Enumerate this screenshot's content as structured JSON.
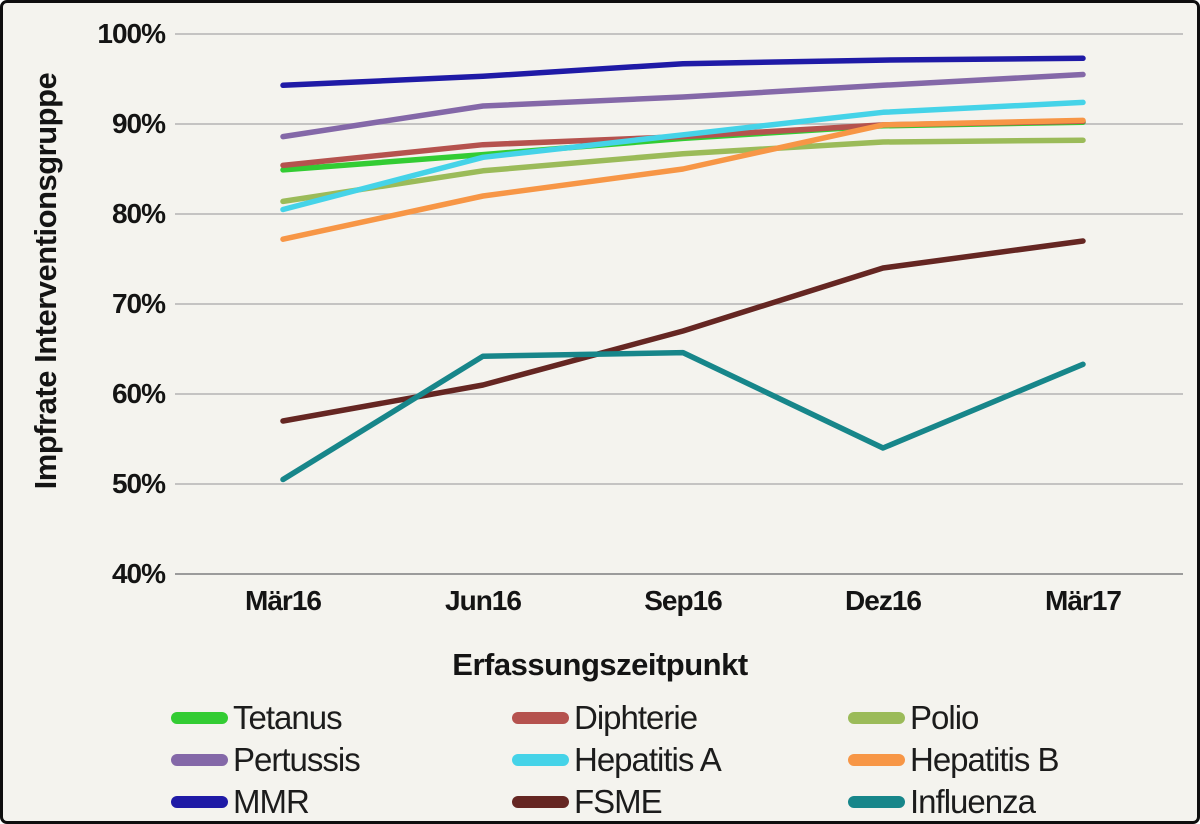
{
  "chart_data": {
    "type": "line",
    "title": "",
    "xlabel": "Erfassungszeitpunkt",
    "ylabel": "Impfrate Interventionsgruppe",
    "categories": [
      "Mär16",
      "Jun16",
      "Sep16",
      "Dez16",
      "Mär17"
    ],
    "ylim": [
      40,
      100
    ],
    "ytick_labels": [
      "100%",
      "90%",
      "80%",
      "70%",
      "60%",
      "50%",
      "40%"
    ],
    "ytick_values": [
      100,
      90,
      80,
      70,
      60,
      50,
      40
    ],
    "grid": true,
    "legend_position": "bottom",
    "series": [
      {
        "name": "Tetanus",
        "color": "#33cc33",
        "values": [
          84.9,
          86.6,
          88.4,
          89.8,
          90.2
        ]
      },
      {
        "name": "Diphterie",
        "color": "#b5524e",
        "values": [
          85.4,
          87.7,
          88.6,
          89.9,
          90.3
        ]
      },
      {
        "name": "Polio",
        "color": "#9bbb59",
        "values": [
          81.4,
          84.8,
          86.7,
          88.0,
          88.2
        ]
      },
      {
        "name": "Pertussis",
        "color": "#8468a8",
        "values": [
          88.6,
          92.0,
          93.0,
          94.3,
          95.5
        ]
      },
      {
        "name": "Hepatitis A",
        "color": "#45d3e8",
        "values": [
          80.5,
          86.3,
          88.8,
          91.3,
          92.4
        ]
      },
      {
        "name": "Hepatitis B",
        "color": "#f79646",
        "values": [
          77.2,
          82.0,
          85.0,
          89.9,
          90.4
        ]
      },
      {
        "name": "MMR",
        "color": "#1f1aa6",
        "values": [
          94.3,
          95.3,
          96.7,
          97.1,
          97.3
        ]
      },
      {
        "name": "FSME",
        "color": "#652622",
        "values": [
          57.0,
          61.0,
          67.0,
          74.0,
          77.0
        ]
      },
      {
        "name": "Influenza",
        "color": "#17868a",
        "values": [
          50.5,
          64.2,
          64.6,
          54.0,
          63.3
        ]
      }
    ]
  },
  "colors": {
    "background": "#f4f3ee",
    "grid": "#b3b3b3",
    "axis": "#9b9b9b",
    "text": "#141414",
    "border": "#0e0e0e"
  }
}
